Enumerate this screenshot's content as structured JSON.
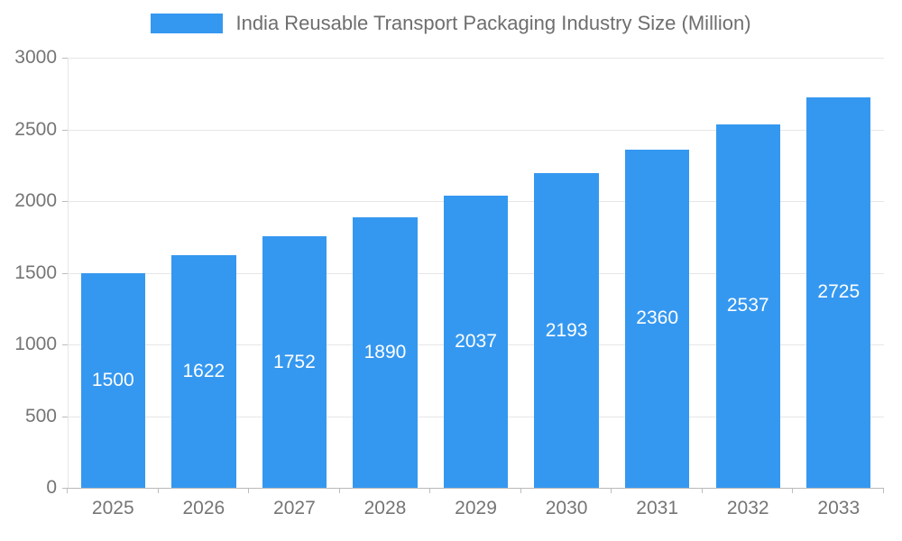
{
  "chart_data": {
    "type": "bar",
    "title": "India Reusable Transport Packaging Industry Size (Million)",
    "categories": [
      "2025",
      "2026",
      "2027",
      "2028",
      "2029",
      "2030",
      "2031",
      "2032",
      "2033"
    ],
    "values": [
      1500,
      1622,
      1752,
      1890,
      2037,
      2193,
      2360,
      2537,
      2725
    ],
    "xlabel": "",
    "ylabel": "",
    "ylim": [
      0,
      3000
    ],
    "yticks": [
      0,
      500,
      1000,
      1500,
      2000,
      2500,
      3000
    ],
    "grid": true,
    "legend_position": "top",
    "colors": {
      "bar": "#3598f0",
      "bar_label_text": "#ffffff",
      "axis_text": "#757575",
      "gridline": "#e6e6e6",
      "baseline": "#b9b9b9"
    }
  }
}
